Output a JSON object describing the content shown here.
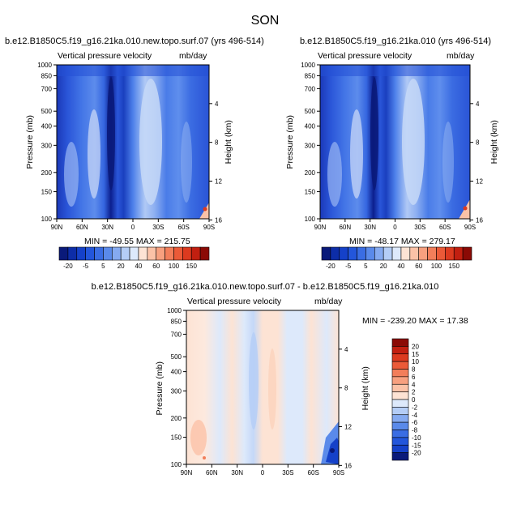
{
  "page": {
    "title": "SON"
  },
  "panels": [
    {
      "id": "p1",
      "title": "b.e12.B1850C5.f19_g16.21ka.010.new.topo.surf.07 (yrs 496-514)",
      "left_label": "Vertical pressure velocity",
      "right_label": "mb/day",
      "ylabel": "Pressure (mb)",
      "y2label": "Height (km)",
      "stats": "MIN = -49.55   MAX = 215.75"
    },
    {
      "id": "p2",
      "title": "b.e12.B1850C5.f19_g16.21ka.010 (yrs 496-514)",
      "left_label": "Vertical pressure velocity",
      "right_label": "mb/day",
      "ylabel": "Pressure (mb)",
      "y2label": "Height (km)",
      "stats": "MIN = -48.17   MAX = 279.17"
    },
    {
      "id": "p3",
      "title": "b.e12.B1850C5.f19_g16.21ka.010.new.topo.surf.07 - b.e12.B1850C5.f19_g16.21ka.010",
      "left_label": "Vertical pressure velocity",
      "right_label": "mb/day",
      "ylabel": "Pressure (mb)",
      "y2label": "Height (km)",
      "stats": "MIN = -239.20   MAX =  17.38"
    }
  ],
  "chart_data": [
    {
      "type": "heatmap",
      "name": "top-left",
      "x_ticks": [
        "90N",
        "60N",
        "30N",
        "0",
        "30S",
        "60S",
        "90S"
      ],
      "y_ticks": [
        "100",
        "150",
        "200",
        "300",
        "400",
        "500",
        "700",
        "850",
        "1000"
      ],
      "y2_ticks": [
        "16",
        "12",
        "8",
        "4"
      ],
      "xlim": [
        90,
        -90
      ],
      "ylim": [
        1000,
        100
      ],
      "y2lim": [
        0,
        16
      ]
    },
    {
      "type": "heatmap",
      "name": "top-right",
      "x_ticks": [
        "90N",
        "60N",
        "30N",
        "0",
        "30S",
        "60S",
        "90S"
      ],
      "y_ticks": [
        "100",
        "150",
        "200",
        "300",
        "400",
        "500",
        "700",
        "850",
        "1000"
      ],
      "y2_ticks": [
        "16",
        "12",
        "8",
        "4"
      ],
      "xlim": [
        90,
        -90
      ],
      "ylim": [
        1000,
        100
      ],
      "y2lim": [
        0,
        16
      ]
    },
    {
      "type": "heatmap",
      "name": "difference",
      "x_ticks": [
        "90N",
        "60N",
        "30N",
        "0",
        "30S",
        "60S",
        "90S"
      ],
      "y_ticks": [
        "100",
        "150",
        "200",
        "300",
        "400",
        "500",
        "700",
        "850",
        "1000"
      ],
      "y2_ticks": [
        "16",
        "12",
        "8",
        "4"
      ],
      "xlim": [
        90,
        -90
      ],
      "ylim": [
        1000,
        100
      ],
      "y2lim": [
        0,
        16
      ]
    }
  ],
  "colorbar_main": {
    "labels": [
      "-20",
      "-5",
      "5",
      "20",
      "40",
      "60",
      "100",
      "150"
    ],
    "colors": [
      "#0a1a7a",
      "#0d2da8",
      "#1541c9",
      "#2356db",
      "#3a6de3",
      "#5a8aea",
      "#85aaf0",
      "#b4cdf6",
      "#dde9fb",
      "#fde3d4",
      "#fbc2a7",
      "#f7a07f",
      "#f27e5a",
      "#eb5a38",
      "#dc3a1f",
      "#c21f10",
      "#8b0a05"
    ]
  },
  "colorbar_diff": {
    "labels": [
      "20",
      "15",
      "10",
      "8",
      "6",
      "4",
      "2",
      "0",
      "-2",
      "-4",
      "-6",
      "-8",
      "-10",
      "-15",
      "-20"
    ],
    "colors": [
      "#8b0a05",
      "#c21f10",
      "#dc3a1f",
      "#eb5a38",
      "#f27e5a",
      "#f7a07f",
      "#fbc2a7",
      "#fde3d4",
      "#dde9fb",
      "#b4cdf6",
      "#85aaf0",
      "#5a8aea",
      "#3a6de3",
      "#2356db",
      "#1541c9",
      "#0a1a7a"
    ]
  }
}
